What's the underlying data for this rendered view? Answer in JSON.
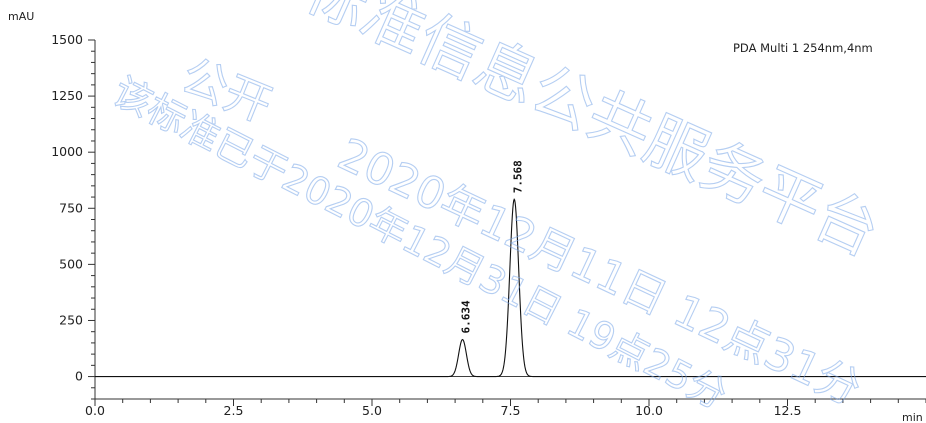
{
  "chart_data": {
    "type": "line",
    "y_unit": "mAU",
    "x_unit": "min",
    "legend": "PDA Multi 1 254nm,4nm",
    "xlim": [
      0,
      15
    ],
    "ylim": [
      -100,
      1500
    ],
    "x_ticks": [
      0.0,
      2.5,
      5.0,
      7.5,
      10.0,
      12.5
    ],
    "x_tick_labels": [
      "0.0",
      "2.5",
      "5.0",
      "7.5",
      "10.0",
      "12.5"
    ],
    "y_ticks": [
      0,
      250,
      500,
      750,
      1000,
      1250,
      1500
    ],
    "y_tick_labels": [
      "0",
      "250",
      "500",
      "750",
      "1000",
      "1250",
      "1500"
    ],
    "baseline": 0,
    "peaks": [
      {
        "retention_time": 6.634,
        "label": "6.634",
        "height": 165,
        "width": 0.07
      },
      {
        "retention_time": 7.568,
        "label": "7.568",
        "height": 790,
        "width": 0.08
      }
    ],
    "grid": false
  },
  "watermark": {
    "line1": "公开",
    "line2": "标准信息公共服务平台",
    "line3": "该标准已于2020年12月31日 19点25分",
    "line4": "2020年12月11日 12点31分"
  }
}
